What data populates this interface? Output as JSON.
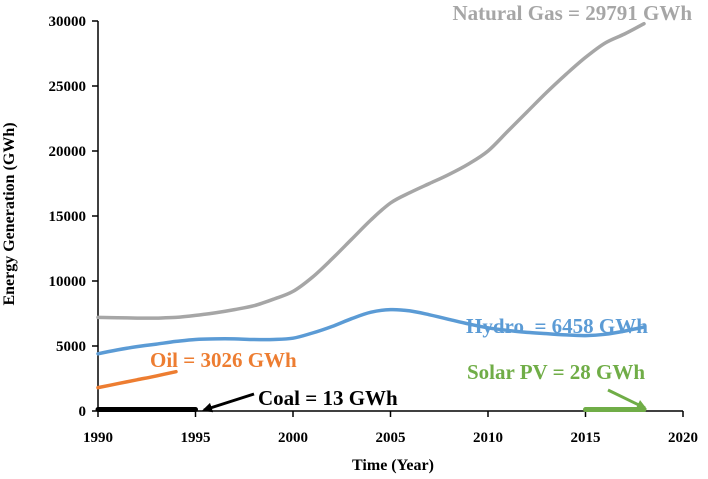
{
  "chart_data": {
    "type": "line",
    "title": "",
    "xlabel": "Time (Year)",
    "ylabel": "Energy Generation  (GWh)",
    "xlim": [
      1990,
      2020
    ],
    "ylim": [
      0,
      30000
    ],
    "x_ticks": [
      1990,
      1995,
      2000,
      2005,
      2010,
      2015,
      2020
    ],
    "y_ticks": [
      0,
      5000,
      10000,
      15000,
      20000,
      25000,
      30000
    ],
    "grid": false,
    "legend": "inline labels",
    "series": [
      {
        "name": "Natural Gas",
        "label": "Natural Gas = 29791 GWh",
        "color": "#a6a6a6",
        "x": [
          1990,
          1991,
          1992,
          1993,
          1994,
          1995,
          1996,
          1997,
          1998,
          1999,
          2000,
          2001,
          2002,
          2003,
          2004,
          2005,
          2006,
          2007,
          2008,
          2009,
          2010,
          2011,
          2012,
          2013,
          2014,
          2015,
          2016,
          2017,
          2018
        ],
        "values": [
          7200,
          7180,
          7150,
          7150,
          7200,
          7350,
          7550,
          7800,
          8100,
          8600,
          9200,
          10300,
          11700,
          13200,
          14700,
          16000,
          16800,
          17500,
          18200,
          19000,
          20000,
          21500,
          23000,
          24500,
          25900,
          27200,
          28300,
          29000,
          29791
        ]
      },
      {
        "name": "Hydro",
        "label": "Hydro  = 6458 GWh",
        "color": "#5b9bd5",
        "x": [
          1990,
          1991,
          1992,
          1993,
          1994,
          1995,
          1996,
          1997,
          1998,
          1999,
          2000,
          2001,
          2002,
          2003,
          2004,
          2005,
          2006,
          2007,
          2008,
          2009,
          2010,
          2011,
          2012,
          2013,
          2014,
          2015,
          2016,
          2017,
          2018
        ],
        "values": [
          4400,
          4700,
          4950,
          5150,
          5350,
          5500,
          5550,
          5550,
          5500,
          5500,
          5600,
          6000,
          6500,
          7100,
          7600,
          7800,
          7700,
          7400,
          7050,
          6700,
          6400,
          6200,
          6050,
          5950,
          5850,
          5800,
          5900,
          6150,
          6458
        ]
      },
      {
        "name": "Oil",
        "label": "Oil = 3026 GWh",
        "color": "#ed7d31",
        "x": [
          1990,
          1991,
          1992,
          1993,
          1994
        ],
        "values": [
          1800,
          2100,
          2400,
          2700,
          3026
        ]
      },
      {
        "name": "Coal",
        "label": "Coal = 13 GWh",
        "color": "#000000",
        "x": [
          1990,
          1995
        ],
        "values": [
          13,
          13
        ]
      },
      {
        "name": "Solar PV",
        "label": "Solar PV = 28 GWh",
        "color": "#70ad47",
        "x": [
          2015,
          2016,
          2017,
          2018
        ],
        "values": [
          28,
          28,
          28,
          28
        ]
      }
    ]
  }
}
